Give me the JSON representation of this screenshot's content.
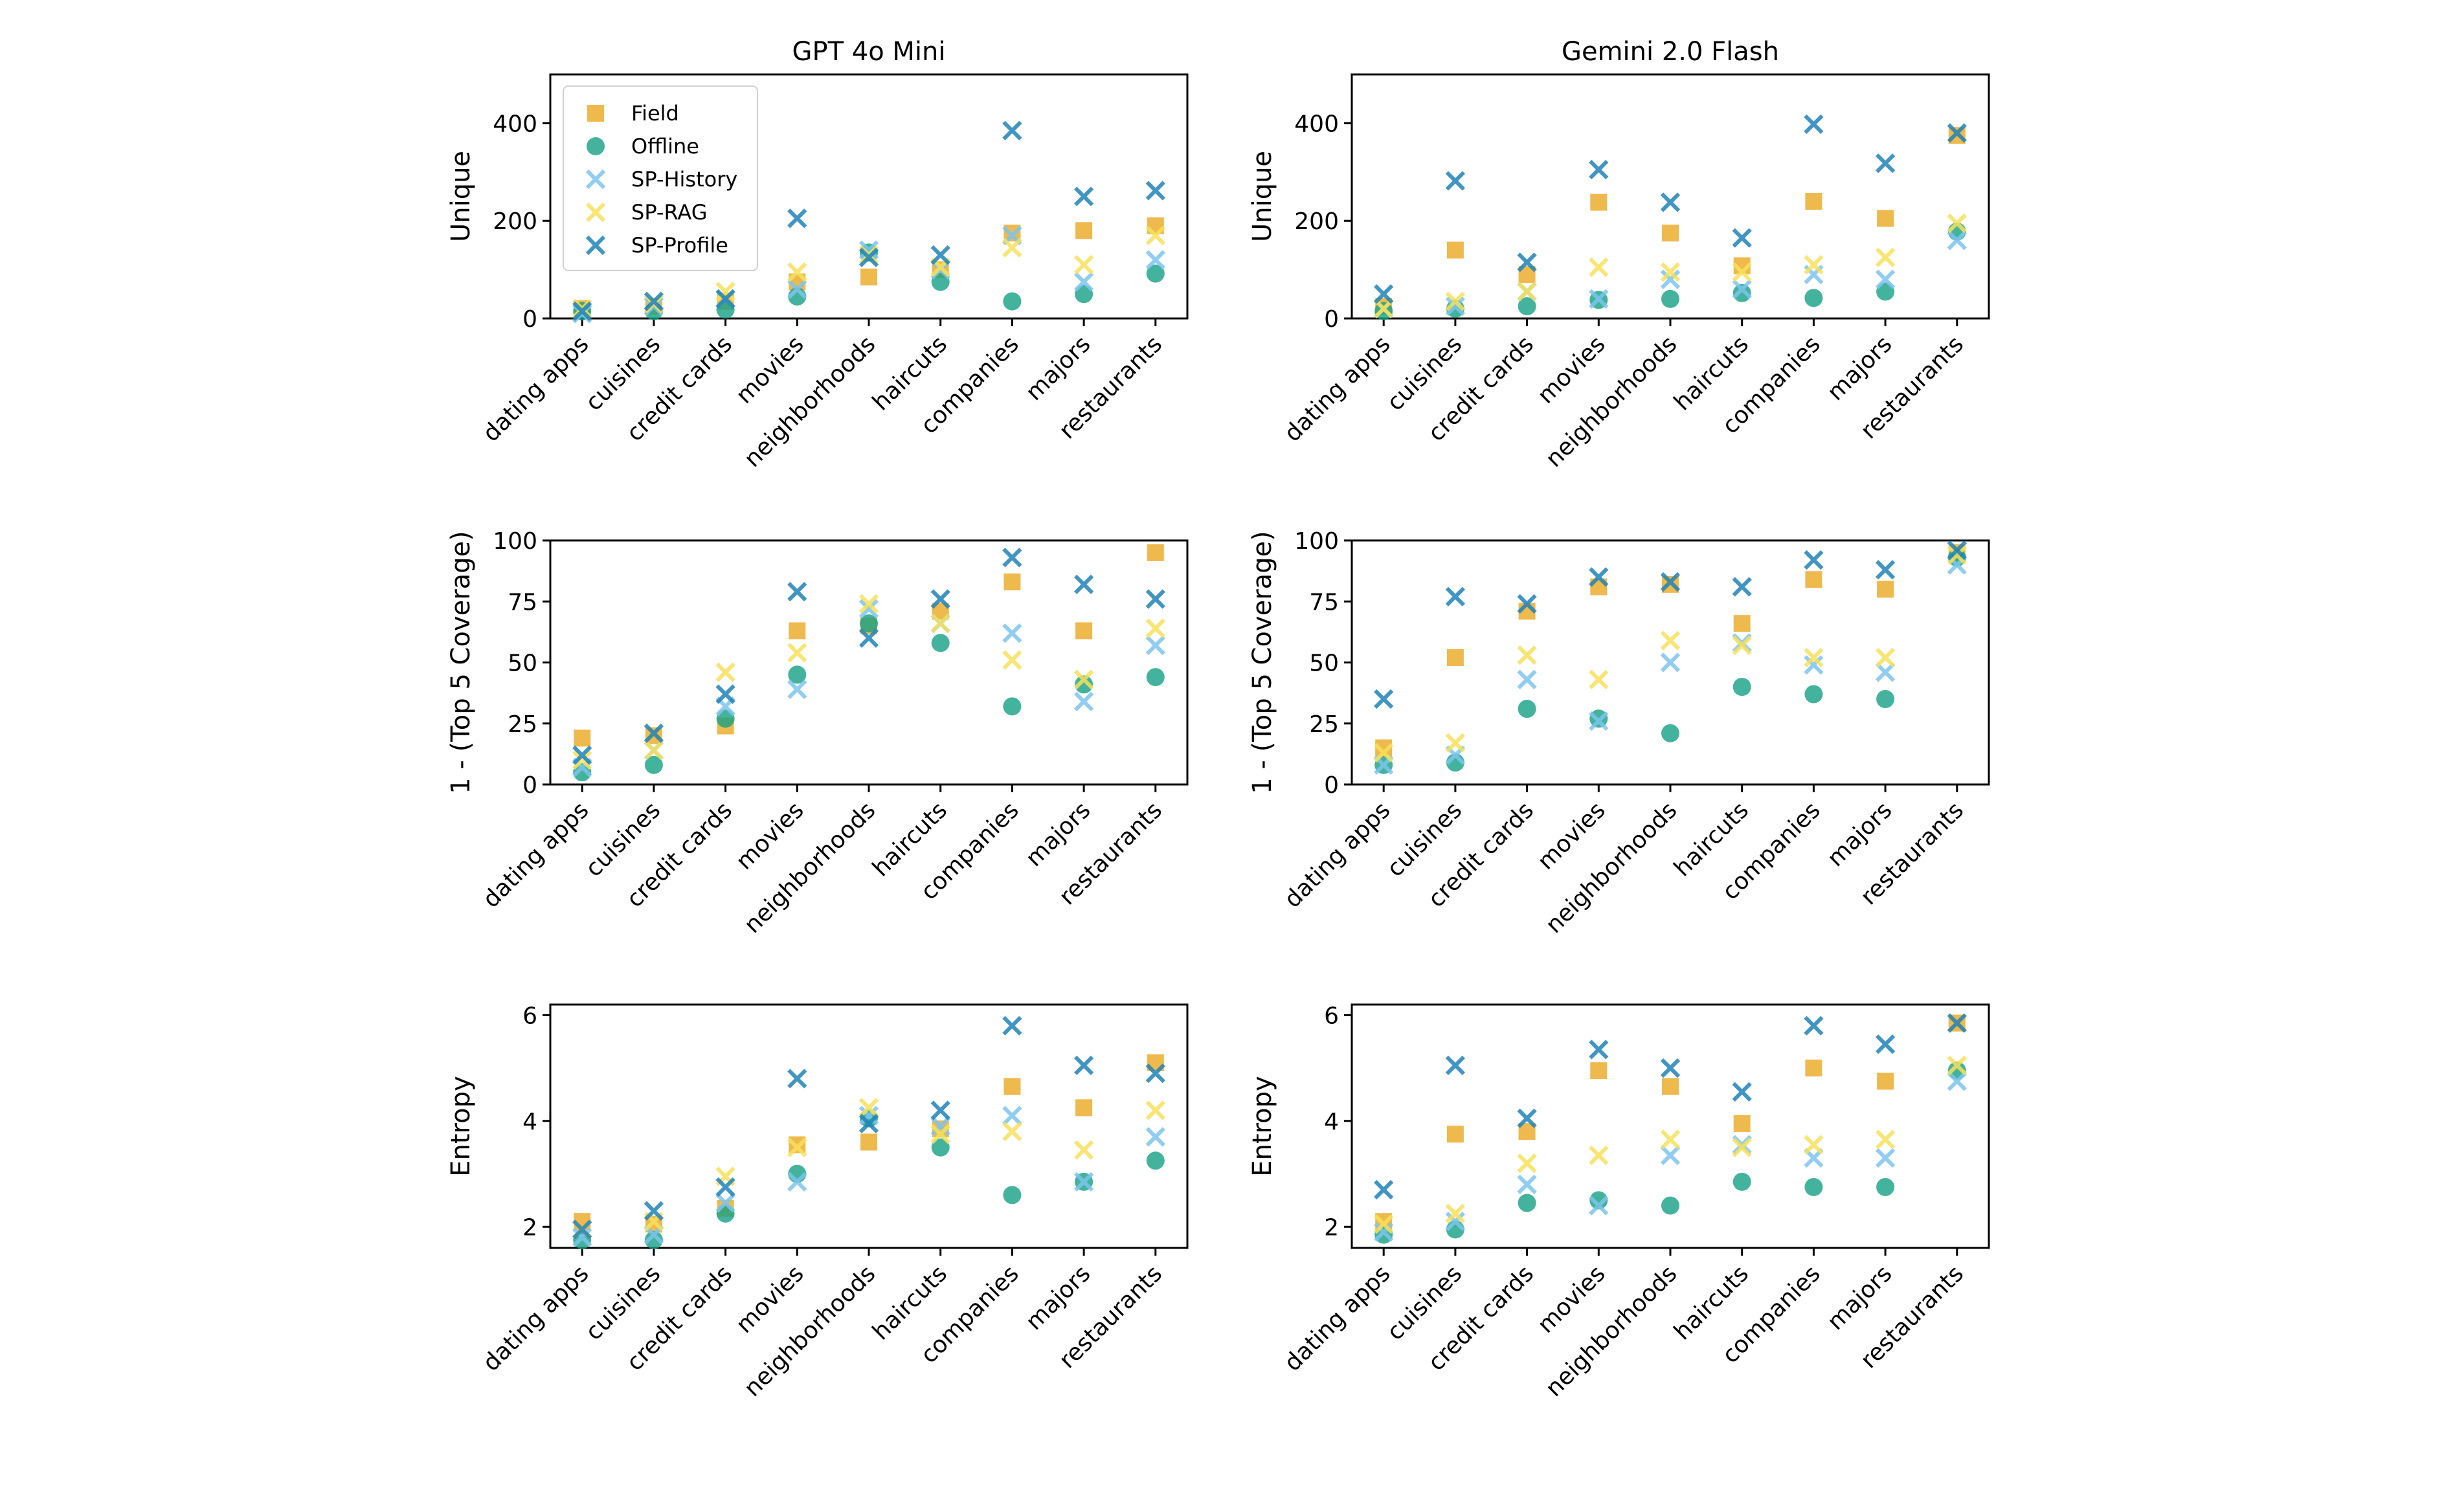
{
  "chart_data": [
    {
      "type": "scatter",
      "title": "GPT 4o Mini",
      "ylabel": "Unique",
      "categories": [
        "dating apps",
        "cuisines",
        "credit cards",
        "movies",
        "neighborhoods",
        "haircuts",
        "companies",
        "majors",
        "restaurants"
      ],
      "ylim": [
        0,
        500
      ],
      "yticks": [
        "0",
        "200",
        "400"
      ],
      "legend": "top-left",
      "series": [
        {
          "name": "Field",
          "values": [
            20,
            25,
            35,
            75,
            85,
            100,
            175,
            180,
            190
          ]
        },
        {
          "name": "Offline",
          "values": [
            15,
            15,
            18,
            45,
            135,
            75,
            35,
            50,
            92
          ]
        },
        {
          "name": "SP-History",
          "values": [
            10,
            25,
            40,
            60,
            140,
            100,
            170,
            75,
            120
          ]
        },
        {
          "name": "SP-RAG",
          "values": [
            20,
            30,
            55,
            95,
            130,
            105,
            145,
            110,
            170
          ]
        },
        {
          "name": "SP-Profile",
          "values": [
            15,
            35,
            40,
            205,
            125,
            130,
            385,
            250,
            262
          ]
        }
      ]
    },
    {
      "type": "scatter",
      "title": "Gemini 2.0 Flash",
      "ylabel": "Unique",
      "categories": [
        "dating apps",
        "cuisines",
        "credit cards",
        "movies",
        "neighborhoods",
        "haircuts",
        "companies",
        "majors",
        "restaurants"
      ],
      "ylim": [
        0,
        500
      ],
      "yticks": [
        "0",
        "200",
        "400"
      ],
      "series": [
        {
          "name": "Field",
          "values": [
            25,
            140,
            90,
            238,
            175,
            108,
            240,
            205,
            375
          ]
        },
        {
          "name": "Offline",
          "values": [
            15,
            20,
            25,
            38,
            40,
            52,
            42,
            55,
            178
          ]
        },
        {
          "name": "SP-History",
          "values": [
            20,
            25,
            55,
            40,
            80,
            60,
            90,
            80,
            160
          ]
        },
        {
          "name": "SP-RAG",
          "values": [
            20,
            35,
            55,
            105,
            95,
            95,
            110,
            125,
            195
          ]
        },
        {
          "name": "SP-Profile",
          "values": [
            50,
            282,
            115,
            305,
            238,
            165,
            398,
            318,
            380
          ]
        }
      ]
    },
    {
      "type": "scatter",
      "title": "",
      "ylabel": "1 - (Top 5 Coverage)",
      "categories": [
        "dating apps",
        "cuisines",
        "credit cards",
        "movies",
        "neighborhoods",
        "haircuts",
        "companies",
        "majors",
        "restaurants"
      ],
      "ylim": [
        0,
        100
      ],
      "yticks": [
        "0",
        "25",
        "50",
        "75",
        "100"
      ],
      "series": [
        {
          "name": "Field",
          "values": [
            19,
            20,
            24,
            63,
            65,
            71,
            83,
            63,
            95
          ]
        },
        {
          "name": "Offline",
          "values": [
            5,
            8,
            27,
            45,
            66,
            58,
            32,
            41,
            44
          ]
        },
        {
          "name": "SP-History",
          "values": [
            7,
            14,
            32,
            39,
            72,
            66,
            62,
            34,
            57
          ]
        },
        {
          "name": "SP-RAG",
          "values": [
            10,
            14,
            46,
            54,
            74,
            66,
            51,
            43,
            64
          ]
        },
        {
          "name": "SP-Profile",
          "values": [
            12,
            21,
            37,
            79,
            60,
            76,
            93,
            82,
            76
          ]
        }
      ]
    },
    {
      "type": "scatter",
      "title": "",
      "ylabel": "1 - (Top 5 Coverage)",
      "categories": [
        "dating apps",
        "cuisines",
        "credit cards",
        "movies",
        "neighborhoods",
        "haircuts",
        "companies",
        "majors",
        "restaurants"
      ],
      "ylim": [
        0,
        100
      ],
      "yticks": [
        "0",
        "25",
        "50",
        "75",
        "100"
      ],
      "series": [
        {
          "name": "Field",
          "values": [
            15,
            52,
            71,
            81,
            82,
            66,
            84,
            80,
            95
          ]
        },
        {
          "name": "Offline",
          "values": [
            8,
            9,
            31,
            27,
            21,
            40,
            37,
            35,
            93
          ]
        },
        {
          "name": "SP-History",
          "values": [
            8,
            12,
            43,
            26,
            50,
            58,
            49,
            46,
            90
          ]
        },
        {
          "name": "SP-RAG",
          "values": [
            13,
            17,
            53,
            43,
            59,
            57,
            52,
            52,
            94
          ]
        },
        {
          "name": "SP-Profile",
          "values": [
            35,
            77,
            74,
            85,
            83,
            81,
            92,
            88,
            96
          ]
        }
      ]
    },
    {
      "type": "scatter",
      "title": "",
      "ylabel": "Entropy",
      "categories": [
        "dating apps",
        "cuisines",
        "credit cards",
        "movies",
        "neighborhoods",
        "haircuts",
        "companies",
        "majors",
        "restaurants"
      ],
      "ylim": [
        1.6,
        6.2
      ],
      "yticks": [
        "2",
        "4",
        "6"
      ],
      "series": [
        {
          "name": "Field",
          "values": [
            2.1,
            2.05,
            2.35,
            3.55,
            3.6,
            3.85,
            4.65,
            4.25,
            5.1
          ]
        },
        {
          "name": "Offline",
          "values": [
            1.75,
            1.75,
            2.25,
            3.0,
            4.05,
            3.5,
            2.6,
            2.85,
            3.25
          ]
        },
        {
          "name": "SP-History",
          "values": [
            1.8,
            1.85,
            2.45,
            2.85,
            4.1,
            3.9,
            4.1,
            2.85,
            3.7
          ]
        },
        {
          "name": "SP-RAG",
          "values": [
            1.95,
            2.1,
            2.95,
            3.5,
            4.25,
            3.75,
            3.8,
            3.45,
            4.2
          ]
        },
        {
          "name": "SP-Profile",
          "values": [
            1.95,
            2.3,
            2.75,
            4.8,
            3.95,
            4.2,
            5.8,
            5.05,
            4.9
          ]
        }
      ]
    },
    {
      "type": "scatter",
      "title": "",
      "ylabel": "Entropy",
      "categories": [
        "dating apps",
        "cuisines",
        "credit cards",
        "movies",
        "neighborhoods",
        "haircuts",
        "companies",
        "majors",
        "restaurants"
      ],
      "ylim": [
        1.6,
        6.2
      ],
      "yticks": [
        "2",
        "4",
        "6"
      ],
      "series": [
        {
          "name": "Field",
          "values": [
            2.1,
            3.75,
            3.8,
            4.95,
            4.65,
            3.95,
            5.0,
            4.75,
            5.85
          ]
        },
        {
          "name": "Offline",
          "values": [
            1.85,
            1.95,
            2.45,
            2.5,
            2.4,
            2.85,
            2.75,
            2.75,
            4.95
          ]
        },
        {
          "name": "SP-History",
          "values": [
            1.9,
            2.1,
            2.8,
            2.4,
            3.35,
            3.55,
            3.3,
            3.3,
            4.75
          ]
        },
        {
          "name": "SP-RAG",
          "values": [
            2.05,
            2.25,
            3.2,
            3.35,
            3.65,
            3.5,
            3.55,
            3.65,
            5.05
          ]
        },
        {
          "name": "SP-Profile",
          "values": [
            2.7,
            5.05,
            4.05,
            5.35,
            5.0,
            4.55,
            5.8,
            5.45,
            5.85
          ]
        }
      ]
    }
  ],
  "legend": [
    "Field",
    "Offline",
    "SP-History",
    "SP-RAG",
    "SP-Profile"
  ],
  "colors": {
    "Field": "#eaa820",
    "Offline": "#14a085",
    "SP-History": "#7cc4ee",
    "SP-RAG": "#f7e05a",
    "SP-Profile": "#1f82b8",
    "axis": "#000000"
  }
}
